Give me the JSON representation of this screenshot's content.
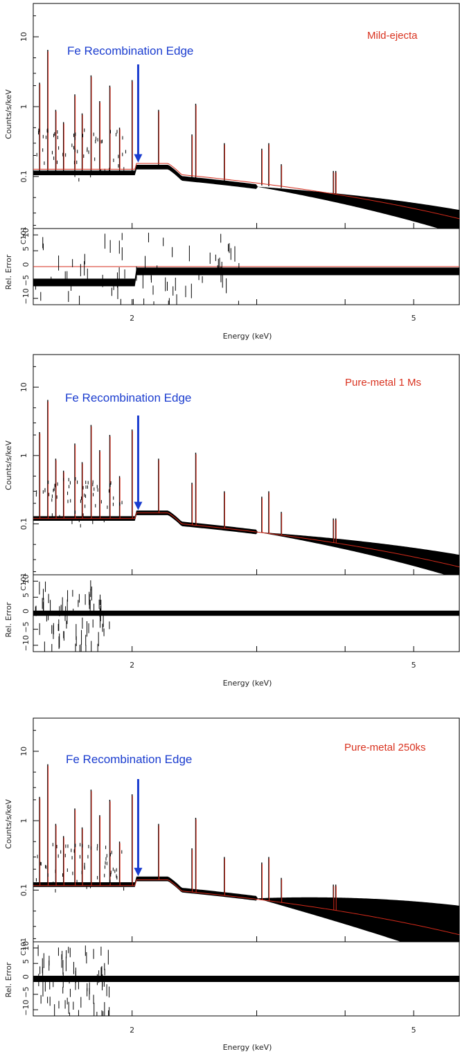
{
  "colors": {
    "data": "#000000",
    "model": "#d42a1a",
    "annotation": "#1a3ccf",
    "label": "#d9321f"
  },
  "chart_data": [
    {
      "type": "line",
      "panel_label": "Mild-ejecta",
      "annotation": "Fe Recombination Edge",
      "xlabel": "Energy (keV)",
      "ylabel": "Counts/s/keV",
      "residual_ylabel": "Rel. Error",
      "residual_ylabel_extra": "C101",
      "xscale": "log",
      "yscale": "log",
      "xlim": [
        1.45,
        5.8
      ],
      "ylim": [
        0.018,
        30
      ],
      "residual_ylim": [
        -12,
        12
      ],
      "x_ticks": [
        "2",
        "5"
      ],
      "y_ticks": [
        "0.1",
        "1",
        "10"
      ],
      "residual_ticks": [
        "10",
        "5",
        "0",
        "−5",
        "−10"
      ],
      "annotation_arrow_x": 2.04,
      "model_offset": 1.06,
      "data_offset": 0.94,
      "residual_level": -1.5,
      "residual_noise": 1.2
    },
    {
      "type": "line",
      "panel_label": "Pure-metal 1 Ms",
      "annotation": "Fe Recombination Edge",
      "xlabel": "Energy (keV)",
      "ylabel": "Counts/s/keV",
      "residual_ylabel": "Rel. Error",
      "residual_ylabel_extra": "C101",
      "xscale": "log",
      "yscale": "log",
      "xlim": [
        1.45,
        5.8
      ],
      "ylim": [
        0.018,
        30
      ],
      "residual_ylim": [
        -12,
        12
      ],
      "x_ticks": [
        "2",
        "5"
      ],
      "y_ticks": [
        "0.1",
        "1",
        "10"
      ],
      "residual_ticks": [
        "10",
        "5",
        "0",
        "−5",
        "−10"
      ],
      "annotation_arrow_x": 2.04,
      "model_offset": 1.0,
      "data_offset": 1.0,
      "residual_level": 0,
      "residual_noise": 0.8
    },
    {
      "type": "line",
      "panel_label": "Pure-metal 250ks",
      "annotation": "Fe Recombination Edge",
      "xlabel": "Energy (keV)",
      "ylabel": "Counts/s/keV",
      "residual_ylabel": "Rel. Error",
      "residual_ylabel_extra": "C101",
      "xscale": "log",
      "yscale": "log",
      "xlim": [
        1.45,
        5.8
      ],
      "ylim": [
        0.018,
        30
      ],
      "residual_ylim": [
        -12,
        12
      ],
      "x_ticks": [
        "2",
        "5"
      ],
      "y_ticks": [
        "0.1",
        "1",
        "10"
      ],
      "residual_ticks": [
        "10",
        "5",
        "0",
        "−5",
        "−10"
      ],
      "annotation_arrow_x": 2.04,
      "model_offset": 0.97,
      "data_offset": 1.0,
      "residual_level": 0,
      "residual_noise": 1.0,
      "binning": "coarse"
    }
  ]
}
